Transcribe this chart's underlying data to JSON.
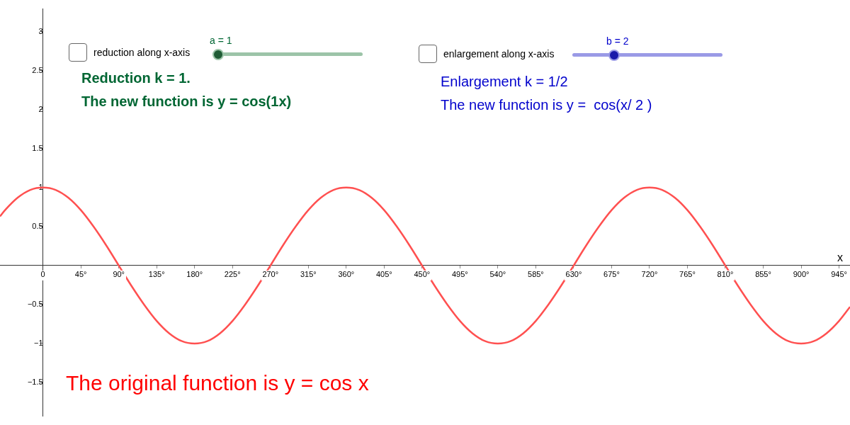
{
  "chart_data": {
    "type": "line",
    "xlabel": "x",
    "x": [
      -51,
      -45,
      -30,
      -15,
      0,
      15,
      30,
      45,
      60,
      75,
      90,
      105,
      120,
      135,
      150,
      165,
      180,
      195,
      210,
      225,
      240,
      255,
      270,
      285,
      300,
      315,
      330,
      345,
      360,
      375,
      390,
      405,
      420,
      435,
      450,
      465,
      480,
      495,
      510,
      525,
      540,
      555,
      570,
      585,
      600,
      615,
      630,
      645,
      660,
      675,
      690,
      705,
      720,
      735,
      750,
      765,
      780,
      795,
      810,
      825,
      840,
      855,
      870,
      885,
      900,
      915,
      930,
      945,
      958
    ],
    "series": [
      {
        "color": "#ff5050",
        "values": [
          0.63,
          0.71,
          0.87,
          0.97,
          1,
          0.97,
          0.87,
          0.71,
          0.5,
          0.26,
          0,
          -0.26,
          -0.5,
          -0.71,
          -0.87,
          -0.97,
          -1,
          -0.97,
          -0.87,
          -0.71,
          -0.5,
          -0.26,
          0,
          0.26,
          0.5,
          0.71,
          0.87,
          0.97,
          1,
          0.97,
          0.87,
          0.71,
          0.5,
          0.26,
          0,
          -0.26,
          -0.5,
          -0.71,
          -0.87,
          -0.97,
          -1,
          -0.97,
          -0.87,
          -0.71,
          -0.5,
          -0.26,
          0,
          0.26,
          0.5,
          0.71,
          0.87,
          0.97,
          1,
          0.97,
          0.87,
          0.71,
          0.5,
          0.26,
          0,
          -0.26,
          -0.5,
          -0.71,
          -0.87,
          -0.97,
          -1,
          -0.97,
          -0.87,
          -0.71,
          -0.53
        ]
      }
    ],
    "xlim": [
      -51,
      958
    ],
    "ylim": [
      -1.93,
      3.29
    ],
    "xticks": [
      {
        "value": 0,
        "label": "0"
      },
      {
        "value": 45,
        "label": "45°"
      },
      {
        "value": 90,
        "label": "90°"
      },
      {
        "value": 135,
        "label": "135°"
      },
      {
        "value": 180,
        "label": "180°"
      },
      {
        "value": 225,
        "label": "225°"
      },
      {
        "value": 270,
        "label": "270°"
      },
      {
        "value": 315,
        "label": "315°"
      },
      {
        "value": 360,
        "label": "360°"
      },
      {
        "value": 405,
        "label": "405°"
      },
      {
        "value": 450,
        "label": "450°"
      },
      {
        "value": 495,
        "label": "495°"
      },
      {
        "value": 540,
        "label": "540°"
      },
      {
        "value": 585,
        "label": "585°"
      },
      {
        "value": 630,
        "label": "630°"
      },
      {
        "value": 675,
        "label": "675°"
      },
      {
        "value": 720,
        "label": "720°"
      },
      {
        "value": 765,
        "label": "765°"
      },
      {
        "value": 810,
        "label": "810°"
      },
      {
        "value": 855,
        "label": "855°"
      },
      {
        "value": 900,
        "label": "900°"
      },
      {
        "value": 945,
        "label": "945°"
      }
    ],
    "yticks": [
      {
        "value": -1.5,
        "label": "−1.5"
      },
      {
        "value": -1,
        "label": "−1"
      },
      {
        "value": -0.5,
        "label": "−0.5"
      },
      0.5,
      1,
      1.5,
      2,
      2.5,
      3
    ],
    "annotations": [
      "reduction along x-axis",
      "a = 1",
      "Reduction k = 1.",
      "The new function is y = cos(1x)",
      "enlargement along x-axis",
      "b = 2",
      "Enlargement k = 1/2",
      "The new function is y =  cos(x/ 2 )",
      "The original function is y = cos x"
    ],
    "grid": false,
    "legend": false,
    "marker": "none",
    "line_style": "solid"
  }
}
